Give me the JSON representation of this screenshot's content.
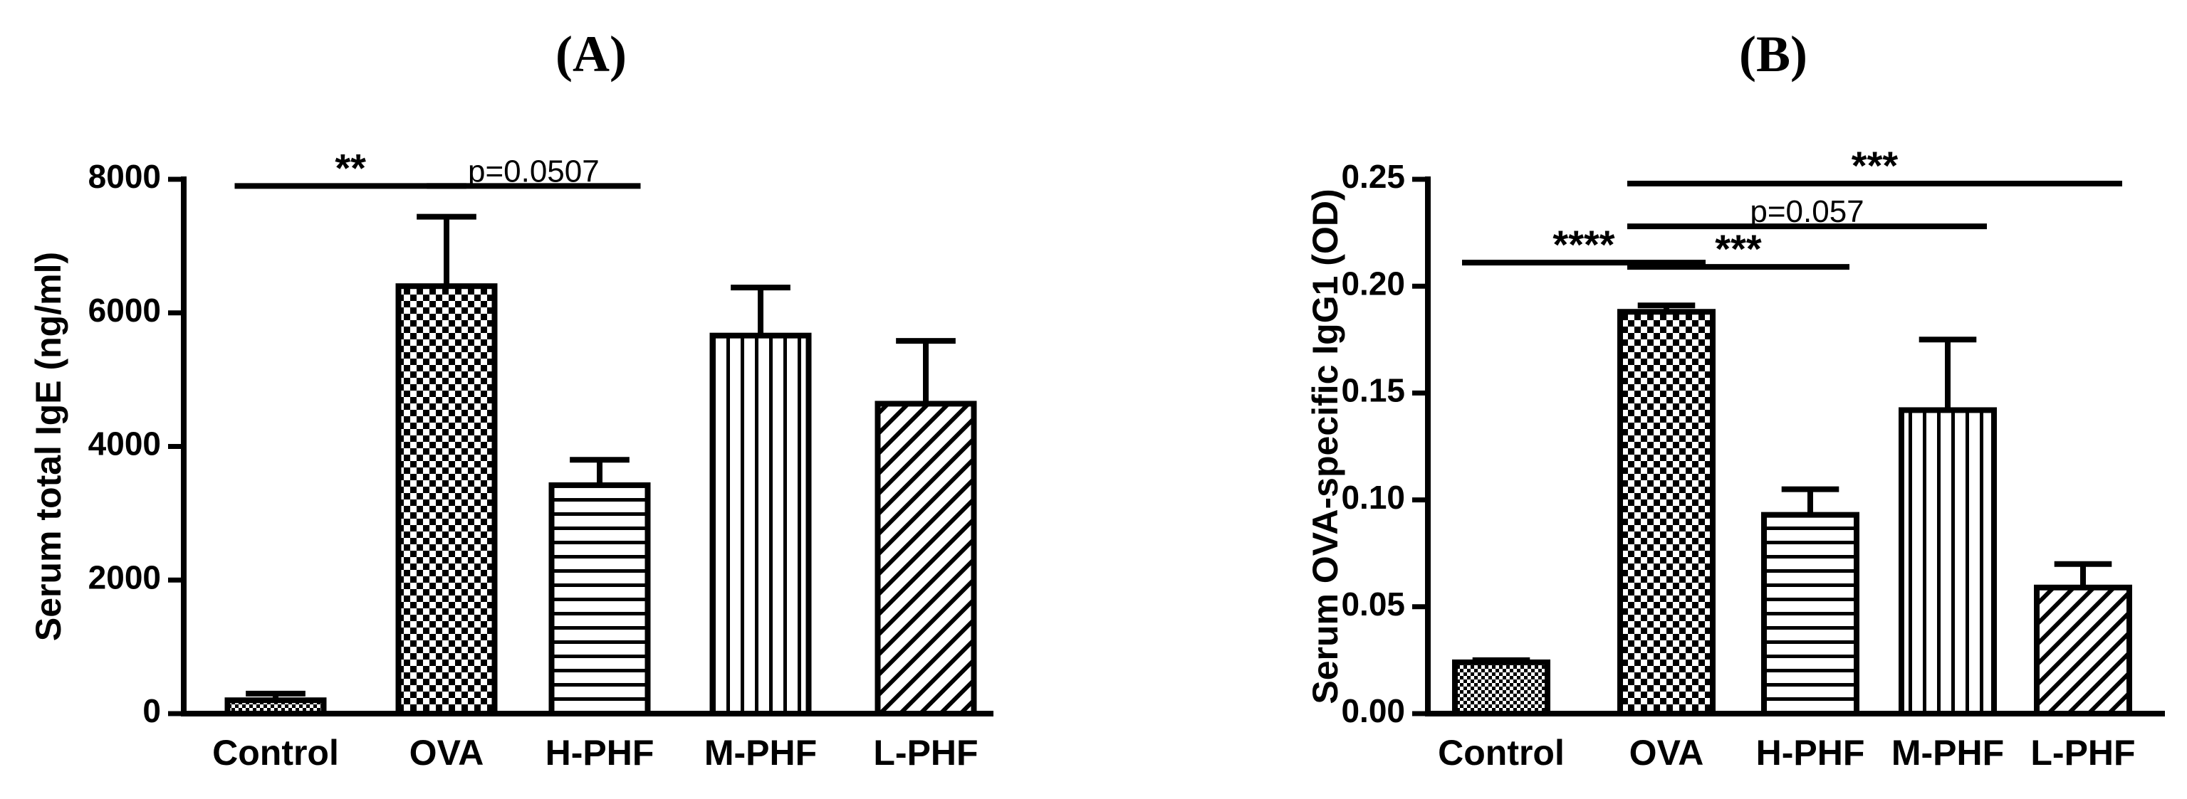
{
  "chart_data": [
    {
      "panel_label": "(A)",
      "type": "bar",
      "ylabel": "Serum total IgE (ng/ml)",
      "categories": [
        "Control",
        "OVA",
        "H-PHF",
        "M-PHF",
        "L-PHF"
      ],
      "values": [
        200,
        6400,
        3420,
        5660,
        4640
      ],
      "errors": [
        100,
        1040,
        380,
        720,
        940
      ],
      "patterns": [
        "small-checker",
        "checker",
        "horizontal-lines",
        "vertical-lines",
        "diagonal-lines"
      ],
      "ylim": [
        0,
        8000
      ],
      "yticks": [
        0,
        2000,
        4000,
        6000,
        8000
      ],
      "ytick_labels": [
        "0",
        "2000",
        "4000",
        "6000",
        "8000"
      ],
      "annotations": [
        {
          "from": 0,
          "to": 1,
          "y": 7900,
          "text": "**"
        },
        {
          "from": 1,
          "to": 2,
          "y": 7900,
          "text": "p=0.0507"
        }
      ]
    },
    {
      "panel_label": "(B)",
      "type": "bar",
      "ylabel": "Serum OVA-specific IgG1 (OD)",
      "categories": [
        "Control",
        "OVA",
        "H-PHF",
        "M-PHF",
        "L-PHF"
      ],
      "values": [
        0.024,
        0.188,
        0.093,
        0.142,
        0.059
      ],
      "errors": [
        0.001,
        0.003,
        0.012,
        0.033,
        0.011
      ],
      "patterns": [
        "small-checker",
        "checker",
        "horizontal-lines",
        "vertical-lines",
        "diagonal-lines"
      ],
      "ylim": [
        0,
        0.25
      ],
      "yticks": [
        0,
        0.05,
        0.1,
        0.15,
        0.2,
        0.25
      ],
      "ytick_labels": [
        "0.00",
        "0.05",
        "0.10",
        "0.15",
        "0.20",
        "0.25"
      ],
      "annotations": [
        {
          "from": 0,
          "to": 1,
          "y": 0.211,
          "text": "****"
        },
        {
          "from": 1,
          "to": 2,
          "y": 0.209,
          "text": "***"
        },
        {
          "from": 1,
          "to": 3,
          "y": 0.228,
          "text": "p=0.057"
        },
        {
          "from": 1,
          "to": 4,
          "y": 0.248,
          "text": "***"
        }
      ]
    }
  ]
}
